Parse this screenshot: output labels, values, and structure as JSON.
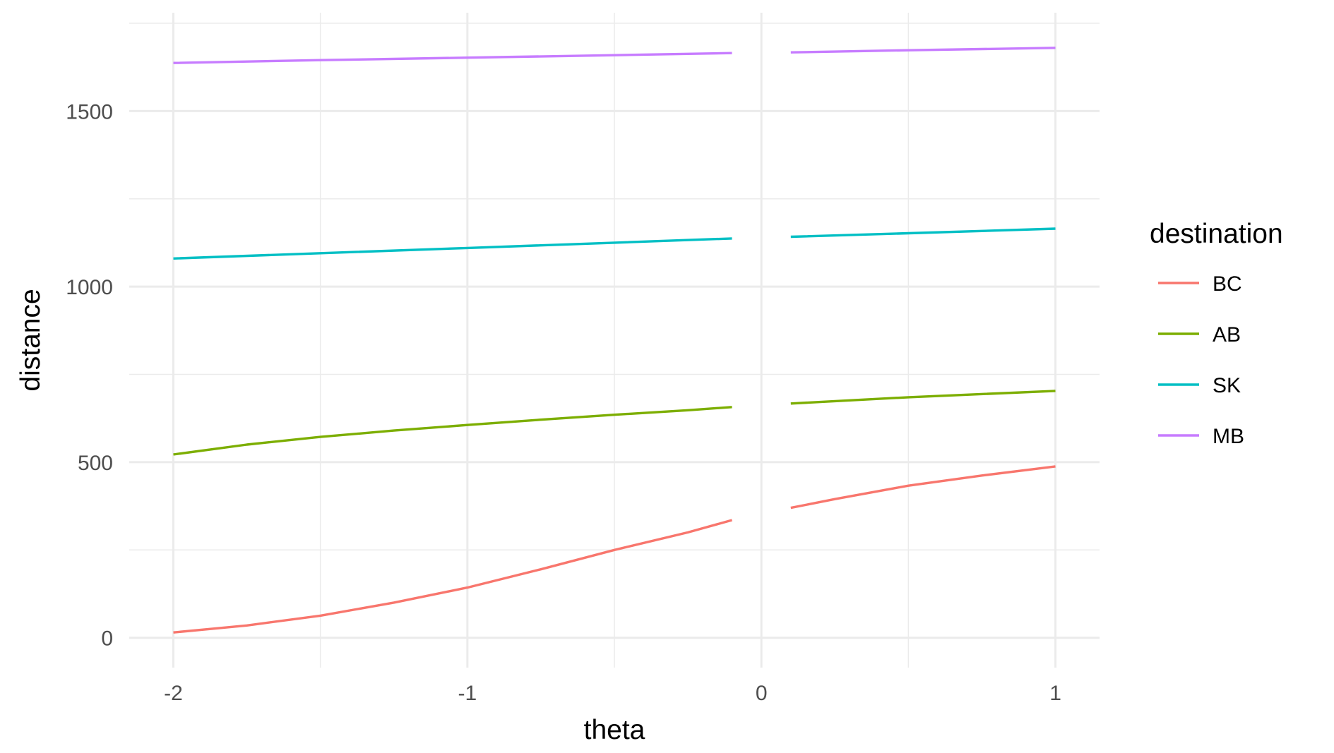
{
  "chart_data": {
    "type": "line",
    "xlabel": "theta",
    "ylabel": "distance",
    "xlim": [
      -2.15,
      1.15
    ],
    "ylim": [
      -85,
      1780
    ],
    "x_ticks": [
      -2,
      -1,
      0,
      1
    ],
    "x_tick_labels": [
      "-2",
      "-1",
      "0",
      "1"
    ],
    "x_minor_ticks": [
      -1.5,
      -0.5,
      0.5
    ],
    "y_ticks": [
      0,
      500,
      1000,
      1500
    ],
    "y_tick_labels": [
      "0",
      "500",
      "1000",
      "1500"
    ],
    "y_minor_ticks": [
      250,
      750,
      1250,
      1750
    ],
    "grid": true,
    "legend": {
      "title": "destination",
      "position": "right"
    },
    "series": [
      {
        "name": "BC",
        "color": "#F8766D",
        "segments": [
          [
            [
              -2,
              15
            ],
            [
              -1.75,
              35
            ],
            [
              -1.5,
              63
            ],
            [
              -1.25,
              100
            ],
            [
              -1,
              143
            ],
            [
              -0.75,
              195
            ],
            [
              -0.5,
              250
            ],
            [
              -0.25,
              300
            ],
            [
              -0.1,
              335
            ]
          ],
          [
            [
              0.1,
              370
            ],
            [
              0.25,
              395
            ],
            [
              0.5,
              433
            ],
            [
              0.75,
              462
            ],
            [
              1,
              488
            ]
          ]
        ]
      },
      {
        "name": "AB",
        "color": "#7CAE00",
        "segments": [
          [
            [
              -2,
              522
            ],
            [
              -1.75,
              550
            ],
            [
              -1.5,
              572
            ],
            [
              -1.25,
              590
            ],
            [
              -1,
              606
            ],
            [
              -0.75,
              621
            ],
            [
              -0.5,
              635
            ],
            [
              -0.25,
              648
            ],
            [
              -0.1,
              657
            ]
          ],
          [
            [
              0.1,
              667
            ],
            [
              0.5,
              685
            ],
            [
              1,
              703
            ]
          ]
        ]
      },
      {
        "name": "SK",
        "color": "#00BFC4",
        "segments": [
          [
            [
              -2,
              1080
            ],
            [
              -1.5,
              1095
            ],
            [
              -1,
              1110
            ],
            [
              -0.5,
              1125
            ],
            [
              -0.1,
              1137
            ]
          ],
          [
            [
              0.1,
              1142
            ],
            [
              0.5,
              1152
            ],
            [
              1,
              1165
            ]
          ]
        ]
      },
      {
        "name": "MB",
        "color": "#C77CFF",
        "segments": [
          [
            [
              -2,
              1637
            ],
            [
              -1.5,
              1645
            ],
            [
              -1,
              1652
            ],
            [
              -0.5,
              1659
            ],
            [
              -0.1,
              1665
            ]
          ],
          [
            [
              0.1,
              1667
            ],
            [
              0.5,
              1673
            ],
            [
              1,
              1680
            ]
          ]
        ]
      }
    ]
  }
}
